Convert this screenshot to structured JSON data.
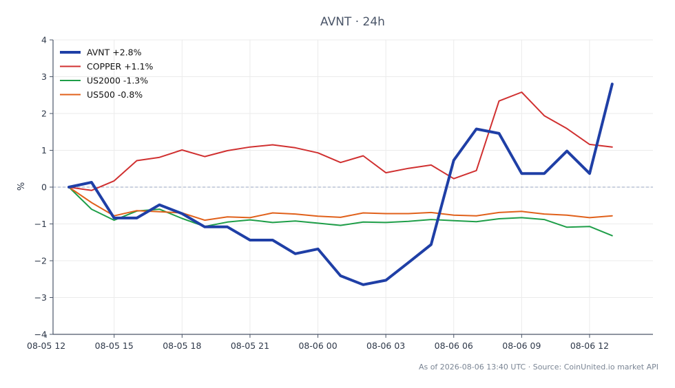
{
  "chart_data": {
    "type": "line",
    "title": "AVNT · 24h",
    "ylabel": "%",
    "xlabel": "",
    "ylim": [
      -4,
      4
    ],
    "yticks": [
      -4,
      -3,
      -2,
      -1,
      0,
      1,
      2,
      3,
      4
    ],
    "ytick_labels": [
      "−4",
      "−3",
      "−2",
      "−1",
      "0",
      "1",
      "2",
      "3",
      "4"
    ],
    "xlim": [
      12.3,
      38.8
    ],
    "xticks": [
      {
        "x": 12,
        "label": "08-05 12"
      },
      {
        "x": 15,
        "label": "08-05 15"
      },
      {
        "x": 18,
        "label": "08-05 18"
      },
      {
        "x": 21,
        "label": "08-05 21"
      },
      {
        "x": 24,
        "label": "08-06 00"
      },
      {
        "x": 27,
        "label": "08-06 03"
      },
      {
        "x": 30,
        "label": "08-06 06"
      },
      {
        "x": 33,
        "label": "08-06 09"
      },
      {
        "x": 36,
        "label": "08-06 12"
      }
    ],
    "grid": true,
    "zero_line": true,
    "legend_position": "top-left",
    "x": [
      13,
      14,
      15,
      16,
      17,
      18,
      19,
      20,
      21,
      22,
      23,
      24,
      25,
      26,
      27,
      28,
      29,
      30,
      31,
      32,
      33,
      34,
      35,
      36,
      37
    ],
    "series": [
      {
        "name": "AVNT +2.8%",
        "color": "#1f3fa6",
        "width": 4,
        "values": [
          0.0,
          0.13,
          -0.84,
          -0.84,
          -0.48,
          -0.72,
          -1.08,
          -1.08,
          -1.44,
          -1.44,
          -1.81,
          -1.68,
          -2.41,
          -2.65,
          -2.53,
          -2.05,
          -1.56,
          0.73,
          1.58,
          1.46,
          0.37,
          0.37,
          0.98,
          0.37,
          2.8
        ]
      },
      {
        "name": "COPPER +1.1%",
        "color": "#d03030",
        "width": 2,
        "values": [
          0.0,
          -0.09,
          0.17,
          0.72,
          0.81,
          1.01,
          0.83,
          0.99,
          1.09,
          1.15,
          1.07,
          0.93,
          0.67,
          0.85,
          0.39,
          0.51,
          0.6,
          0.23,
          0.45,
          2.34,
          2.58,
          1.94,
          1.59,
          1.16,
          1.09
        ]
      },
      {
        "name": "US2000 -1.3%",
        "color": "#1e9e48",
        "width": 2,
        "values": [
          0.0,
          -0.6,
          -0.9,
          -0.65,
          -0.6,
          -0.85,
          -1.07,
          -0.95,
          -0.89,
          -0.96,
          -0.92,
          -0.98,
          -1.04,
          -0.95,
          -0.96,
          -0.93,
          -0.88,
          -0.91,
          -0.94,
          -0.86,
          -0.83,
          -0.88,
          -1.09,
          -1.07,
          -1.32
        ]
      },
      {
        "name": "US500 -0.8%",
        "color": "#e0601a",
        "width": 2,
        "values": [
          0.0,
          -0.42,
          -0.78,
          -0.64,
          -0.67,
          -0.7,
          -0.9,
          -0.81,
          -0.83,
          -0.7,
          -0.73,
          -0.79,
          -0.82,
          -0.7,
          -0.72,
          -0.72,
          -0.69,
          -0.76,
          -0.78,
          -0.69,
          -0.66,
          -0.73,
          -0.76,
          -0.83,
          -0.78
        ]
      }
    ]
  },
  "footer": {
    "text": "As of 2026-08-06 13:40 UTC · Source: CoinUnited.io market API"
  }
}
